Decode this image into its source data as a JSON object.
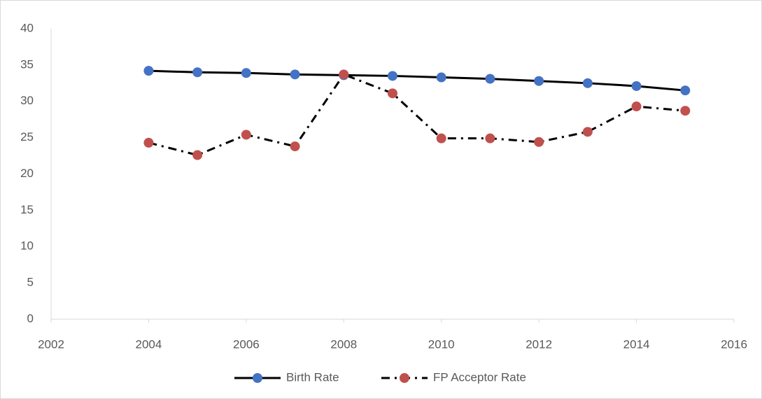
{
  "chart_data": {
    "type": "line",
    "x": [
      2004,
      2005,
      2006,
      2007,
      2008,
      2009,
      2010,
      2011,
      2012,
      2013,
      2014,
      2015
    ],
    "series": [
      {
        "name": "Birth Rate",
        "color": "#4472c4",
        "line_color": "#000000",
        "dash": "solid",
        "values": [
          34.2,
          34.0,
          33.9,
          33.7,
          33.6,
          33.5,
          33.3,
          33.1,
          32.8,
          32.5,
          32.1,
          31.5
        ]
      },
      {
        "name": "FP Acceptor Rate",
        "color": "#c0504d",
        "line_color": "#000000",
        "dash": "dashdot",
        "values": [
          24.3,
          22.6,
          25.4,
          23.8,
          33.7,
          31.1,
          24.9,
          24.9,
          24.4,
          25.8,
          29.3,
          28.7
        ]
      }
    ],
    "xlim": [
      2002,
      2016
    ],
    "xticks": [
      2002,
      2004,
      2006,
      2008,
      2010,
      2012,
      2014,
      2016
    ],
    "ylim": [
      0,
      40
    ],
    "yticks": [
      0,
      5,
      10,
      15,
      20,
      25,
      30,
      35,
      40
    ],
    "grid": false,
    "legend": "bottom"
  }
}
